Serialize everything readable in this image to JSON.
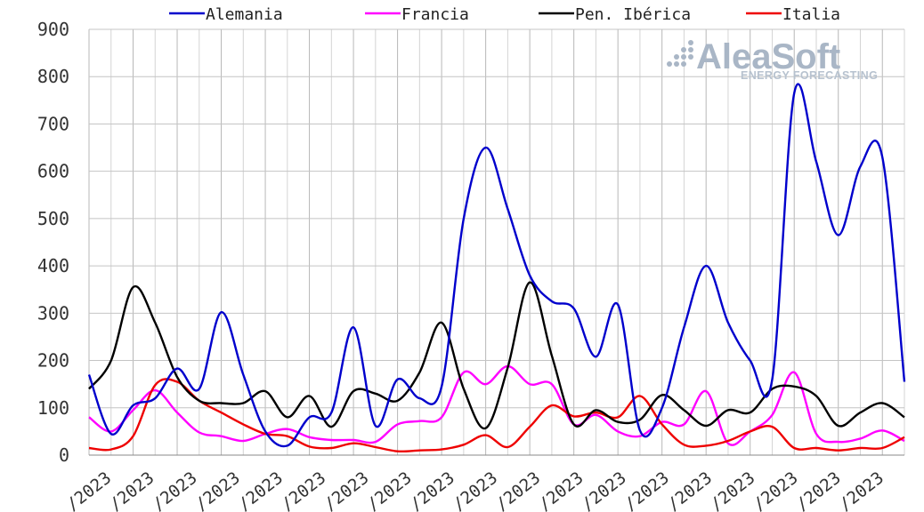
{
  "logo": {
    "name": "AleaSoft",
    "tagline": "ENERGY FORECASTING"
  },
  "chart_data": {
    "type": "line",
    "title": "",
    "xlabel": "",
    "ylabel": "",
    "ylim": [
      0,
      900
    ],
    "yticks": [
      0,
      100,
      200,
      300,
      400,
      500,
      600,
      700,
      800,
      900
    ],
    "grid": true,
    "legend_position": "top",
    "x_tick_labels": [
      "/2023",
      "/2023",
      "/2023",
      "/2023",
      "/2023",
      "/2023",
      "/2023",
      "/2023",
      "/2023",
      "/2023",
      "/2023",
      "/2023",
      "/2023",
      "/2023",
      "/2023",
      "/2023",
      "/2023",
      "/2023",
      "/2023"
    ],
    "x_points": 38,
    "series": [
      {
        "name": "Alemania",
        "color": "#0000cc",
        "values": [
          170,
          45,
          105,
          120,
          183,
          140,
          302,
          170,
          50,
          20,
          80,
          90,
          270,
          62,
          160,
          120,
          145,
          500,
          650,
          520,
          380,
          325,
          310,
          208,
          318,
          52,
          100,
          270,
          400,
          280,
          200,
          160,
          765,
          620,
          465,
          610,
          630,
          155
        ]
      },
      {
        "name": "Francia",
        "color": "#ff00ff",
        "values": [
          80,
          50,
          95,
          137,
          90,
          48,
          40,
          30,
          45,
          55,
          38,
          32,
          32,
          28,
          65,
          72,
          80,
          175,
          150,
          188,
          150,
          150,
          65,
          85,
          50,
          40,
          70,
          65,
          135,
          25,
          50,
          85,
          175,
          45,
          28,
          35,
          52,
          30
        ]
      },
      {
        "name": "Pen. Ibérica",
        "color": "#000000",
        "values": [
          140,
          200,
          355,
          280,
          165,
          115,
          110,
          110,
          135,
          80,
          125,
          60,
          135,
          130,
          115,
          175,
          280,
          140,
          57,
          185,
          365,
          210,
          65,
          95,
          70,
          75,
          127,
          95,
          62,
          95,
          90,
          140,
          145,
          125,
          62,
          90,
          110,
          80
        ]
      },
      {
        "name": "Italia",
        "color": "#ee0000",
        "values": [
          15,
          12,
          40,
          148,
          155,
          115,
          90,
          65,
          45,
          40,
          18,
          15,
          25,
          17,
          8,
          10,
          12,
          22,
          42,
          17,
          60,
          105,
          82,
          90,
          80,
          125,
          65,
          22,
          20,
          30,
          50,
          60,
          15,
          15,
          10,
          15,
          15,
          38
        ]
      }
    ]
  }
}
